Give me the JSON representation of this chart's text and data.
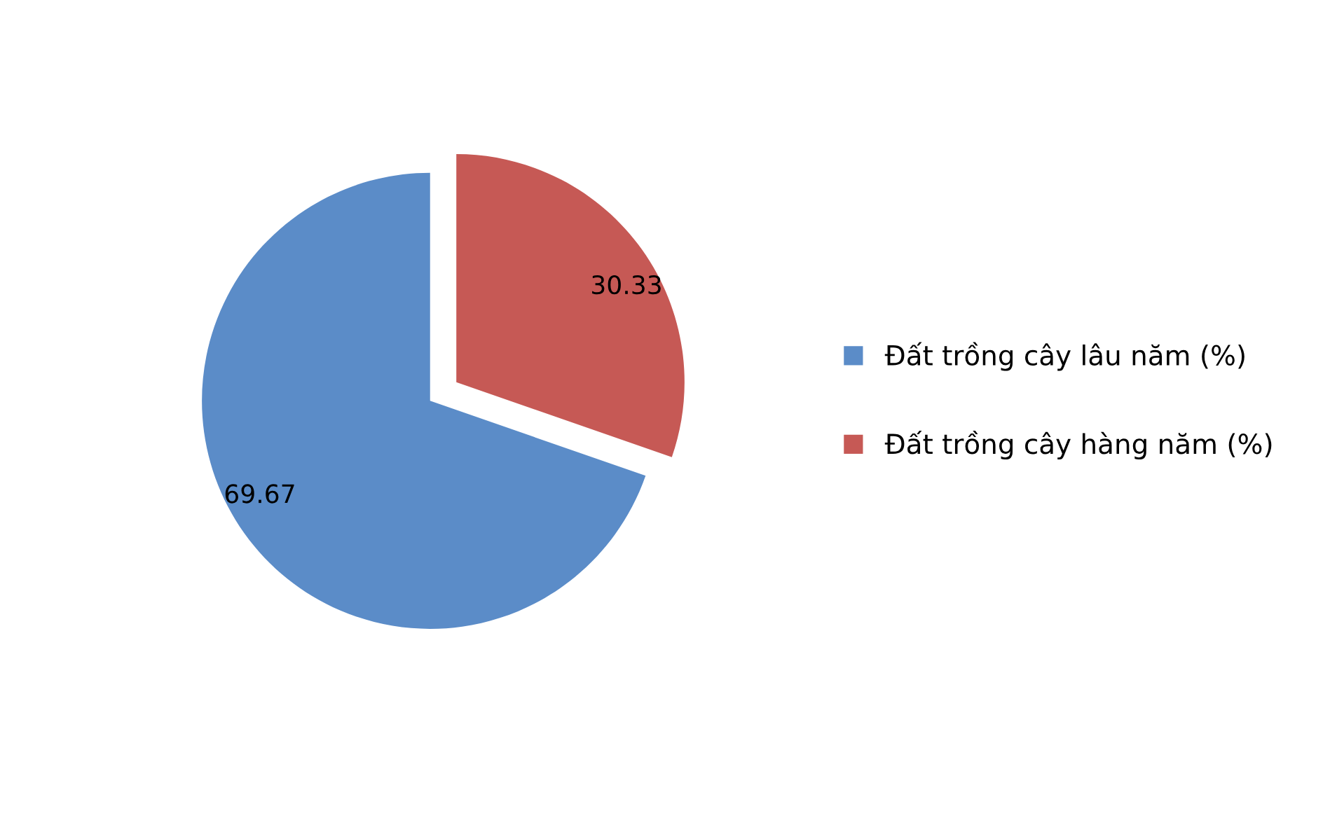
{
  "chart_data": {
    "type": "pie",
    "categories": [
      "Đất trồng cây lâu năm (%)",
      "Đất trồng cây hàng năm (%)"
    ],
    "values": [
      69.67,
      30.33
    ],
    "colors": [
      "#5b8cc8",
      "#c65955"
    ],
    "data_labels": true,
    "legend": "right"
  }
}
